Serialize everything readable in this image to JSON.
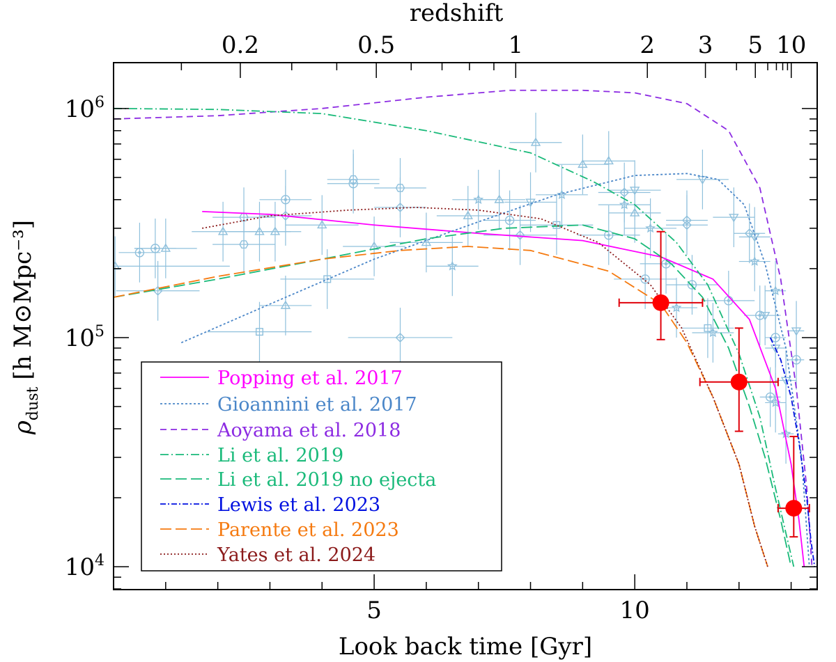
{
  "chart_data": {
    "type": "line",
    "title": "",
    "xlabel": "Look back time [Gyr]",
    "top_xlabel": "redshift",
    "ylabel_main": "ρ",
    "ylabel_sub": "dust",
    "ylabel_unit": "[h M⊙Mpc⁻³]",
    "xlim": [
      0,
      13.5
    ],
    "ylim_log10": [
      3.9,
      6.2
    ],
    "x_ticks": [
      {
        "v": 5,
        "label": "5"
      },
      {
        "v": 10,
        "label": "10"
      }
    ],
    "y_ticks": [
      {
        "v": 10000,
        "base": "10",
        "exp": "4"
      },
      {
        "v": 100000,
        "base": "10",
        "exp": "5"
      },
      {
        "v": 1000000,
        "base": "10",
        "exp": "6"
      }
    ],
    "top_ticks": [
      {
        "z": 0.2,
        "label": "0.2"
      },
      {
        "z": 0.5,
        "label": "0.5"
      },
      {
        "z": 1,
        "label": "1"
      },
      {
        "z": 2,
        "label": "2"
      },
      {
        "z": 3,
        "label": "3"
      },
      {
        "z": 5,
        "label": "5"
      },
      {
        "z": 10,
        "label": "10"
      }
    ],
    "series": [
      {
        "name": "Popping et al. 2017",
        "color": "#ff00ff",
        "dash": "",
        "x": [
          1.7,
          3,
          5,
          7,
          9,
          10.5,
          11.5,
          12.2,
          12.7,
          13,
          13.15,
          13.25
        ],
        "y": [
          355000,
          345000,
          310000,
          285000,
          265000,
          225000,
          180000,
          120000,
          60000,
          28000,
          16000,
          10000
        ]
      },
      {
        "name": "Gioannini et al. 2017",
        "color": "#4a86c8",
        "dash": "3,3",
        "x": [
          1.3,
          3,
          5,
          7,
          8.5,
          10,
          11,
          11.6,
          12.1,
          12.5,
          12.9,
          13.2,
          13.35
        ],
        "y": [
          95000,
          140000,
          220000,
          320000,
          420000,
          510000,
          520000,
          490000,
          380000,
          210000,
          90000,
          30000,
          10000
        ]
      },
      {
        "name": "Aoyama et al. 2018",
        "color": "#8c2be2",
        "dash": "9,6",
        "x": [
          0,
          2,
          4,
          6,
          7.6,
          9,
          10,
          11,
          11.8,
          12.4,
          12.8,
          13.1,
          13.3,
          13.4
        ],
        "y": [
          900000,
          930000,
          1000000,
          1120000,
          1200000,
          1200000,
          1170000,
          1050000,
          800000,
          450000,
          180000,
          60000,
          22000,
          10000
        ]
      },
      {
        "name": "Li et al. 2019",
        "color": "#1aba7a",
        "dash": "12,4,2,4",
        "x": [
          0,
          2,
          4,
          6,
          8,
          9.2,
          10,
          10.8,
          11.4,
          12,
          12.4,
          12.7,
          12.9,
          13.05
        ],
        "y": [
          1000000,
          990000,
          950000,
          800000,
          640000,
          480000,
          380000,
          260000,
          170000,
          85000,
          45000,
          22000,
          14000,
          10000
        ]
      },
      {
        "name": "Li et al. 2019 no ejecta",
        "color": "#1aba7a",
        "dash": "16,6",
        "x": [
          0,
          2,
          4,
          6,
          7.5,
          9,
          10,
          10.7,
          11.3,
          11.8,
          12.2,
          12.5,
          12.8,
          13
        ],
        "y": [
          150000,
          180000,
          220000,
          270000,
          300000,
          310000,
          270000,
          210000,
          150000,
          90000,
          50000,
          30000,
          16000,
          10000
        ]
      },
      {
        "name": "Lewis et al. 2023",
        "color": "#0010e0",
        "dash": "8,3,2,3",
        "x": [
          12.6,
          12.8,
          13,
          13.15,
          13.3,
          13.38,
          13.45
        ],
        "y": [
          100000,
          80000,
          55000,
          35000,
          20000,
          13000,
          10000
        ]
      },
      {
        "name": "Parente et al. 2023",
        "color": "#f57a10",
        "dash": "16,6",
        "x": [
          0,
          2,
          4,
          5.5,
          6.8,
          8,
          9.5,
          10.5,
          11,
          11.5,
          12,
          12.3,
          12.55
        ],
        "y": [
          150000,
          185000,
          220000,
          240000,
          250000,
          240000,
          195000,
          140000,
          95000,
          55000,
          28000,
          15000,
          10000
        ]
      },
      {
        "name": "Yates et al. 2024",
        "color": "#8b1a1a",
        "dash": "2,3",
        "x": [
          1.7,
          3,
          4.5,
          5.8,
          7,
          8.2,
          9.3,
          10.3,
          10.9,
          11.5,
          12,
          12.3,
          12.55
        ],
        "y": [
          300000,
          340000,
          360000,
          370000,
          360000,
          330000,
          260000,
          170000,
          110000,
          55000,
          28000,
          15000,
          10000
        ]
      }
    ],
    "highlight_points": [
      {
        "x": 10.5,
        "y": 142000,
        "xerr": 0.8,
        "yerr_lo": 98000,
        "yerr_hi": 290000
      },
      {
        "x": 12.0,
        "y": 64000,
        "xerr": 0.75,
        "yerr_lo": 39000,
        "yerr_hi": 110000
      },
      {
        "x": 13.05,
        "y": 18000,
        "xerr": 0.3,
        "yerr_lo": 13500,
        "yerr_hi": 37000
      }
    ],
    "observations": [
      {
        "x": 0.03,
        "y": 205000,
        "xerr": 2.2,
        "m": "tri"
      },
      {
        "x": 0.5,
        "y": 235000,
        "xerr": 0.4,
        "m": "circ"
      },
      {
        "x": 0.8,
        "y": 245000,
        "xerr": 0.4,
        "m": "circ"
      },
      {
        "x": 1.0,
        "y": 245000,
        "xerr": 0.6,
        "m": "tri"
      },
      {
        "x": 0.85,
        "y": 160000,
        "xerr": 0.8,
        "m": "dia"
      },
      {
        "x": 2.1,
        "y": 290000,
        "xerr": 0.6,
        "m": "tri"
      },
      {
        "x": 2.5,
        "y": 335000,
        "xerr": 0.6,
        "m": "hex"
      },
      {
        "x": 2.5,
        "y": 255000,
        "xerr": 0.6,
        "m": "hex"
      },
      {
        "x": 2.8,
        "y": 290000,
        "xerr": 0.6,
        "m": "tri"
      },
      {
        "x": 3.1,
        "y": 290000,
        "xerr": 0.5,
        "m": "tri"
      },
      {
        "x": 3.3,
        "y": 400000,
        "xerr": 0.5,
        "m": "circ"
      },
      {
        "x": 3.3,
        "y": 340000,
        "xerr": 0.5,
        "m": "dia"
      },
      {
        "x": 3.3,
        "y": 138000,
        "xerr": 0.5,
        "m": "tri"
      },
      {
        "x": 2.8,
        "y": 106000,
        "xerr": 1.0,
        "m": "sq"
      },
      {
        "x": 4.0,
        "y": 310000,
        "xerr": 0.7,
        "m": "tri"
      },
      {
        "x": 4.1,
        "y": 180000,
        "xerr": 0.9,
        "m": "sq"
      },
      {
        "x": 4.6,
        "y": 490000,
        "xerr": 0.5,
        "m": "hex"
      },
      {
        "x": 4.6,
        "y": 470000,
        "xerr": 0.5,
        "m": "circ"
      },
      {
        "x": 5.0,
        "y": 250000,
        "xerr": 0.6,
        "m": "tri"
      },
      {
        "x": 5.5,
        "y": 450000,
        "xerr": 0.5,
        "m": "hex"
      },
      {
        "x": 5.5,
        "y": 370000,
        "xerr": 0.5,
        "m": "dia"
      },
      {
        "x": 5.5,
        "y": 100000,
        "xerr": 1.0,
        "m": "dia"
      },
      {
        "x": 6.0,
        "y": 260000,
        "xerr": 0.7,
        "m": "tri"
      },
      {
        "x": 6.5,
        "y": 205000,
        "xerr": 0.5,
        "m": "star"
      },
      {
        "x": 6.8,
        "y": 340000,
        "xerr": 0.6,
        "m": "tri"
      },
      {
        "x": 7.0,
        "y": 400000,
        "xerr": 0.5,
        "m": "star"
      },
      {
        "x": 7.4,
        "y": 400000,
        "xerr": 0.5,
        "m": "tri"
      },
      {
        "x": 7.6,
        "y": 325000,
        "xerr": 0.5,
        "m": "circ"
      },
      {
        "x": 7.8,
        "y": 280000,
        "xerr": 0.7,
        "m": "dia"
      },
      {
        "x": 8.0,
        "y": 390000,
        "xerr": 0.5,
        "m": "dtri"
      },
      {
        "x": 8.1,
        "y": 710000,
        "xerr": 0.5,
        "m": "tri"
      },
      {
        "x": 8.5,
        "y": 310000,
        "xerr": 0.7,
        "m": "sq"
      },
      {
        "x": 8.6,
        "y": 420000,
        "xerr": 0.5,
        "m": "star"
      },
      {
        "x": 9.0,
        "y": 570000,
        "xerr": 0.5,
        "m": "tri"
      },
      {
        "x": 9.5,
        "y": 590000,
        "xerr": 0.5,
        "m": "tri"
      },
      {
        "x": 9.5,
        "y": 280000,
        "xerr": 0.6,
        "m": "circ"
      },
      {
        "x": 9.8,
        "y": 380000,
        "xerr": 0.5,
        "m": "star"
      },
      {
        "x": 9.8,
        "y": 430000,
        "xerr": 0.5,
        "m": "dia"
      },
      {
        "x": 10.0,
        "y": 350000,
        "xerr": 0.5,
        "m": "tri"
      },
      {
        "x": 10.0,
        "y": 440000,
        "xerr": 0.5,
        "m": "dtri"
      },
      {
        "x": 10.2,
        "y": 180000,
        "xerr": 0.6,
        "m": "circ"
      },
      {
        "x": 10.3,
        "y": 300000,
        "xerr": 0.5,
        "m": "star"
      },
      {
        "x": 10.6,
        "y": 210000,
        "xerr": 0.5,
        "m": "circ"
      },
      {
        "x": 10.8,
        "y": 135000,
        "xerr": 0.4,
        "m": "star"
      },
      {
        "x": 11.0,
        "y": 325000,
        "xerr": 0.4,
        "m": "dia"
      },
      {
        "x": 11.0,
        "y": 310000,
        "xerr": 0.4,
        "m": "dia"
      },
      {
        "x": 11.1,
        "y": 170000,
        "xerr": 0.5,
        "m": "circ"
      },
      {
        "x": 11.3,
        "y": 490000,
        "xerr": 0.5,
        "m": "dtri"
      },
      {
        "x": 11.4,
        "y": 110000,
        "xerr": 0.5,
        "m": "sq"
      },
      {
        "x": 11.5,
        "y": 105000,
        "xerr": 0.4,
        "m": "star"
      },
      {
        "x": 11.8,
        "y": 145000,
        "xerr": 0.5,
        "m": "circ"
      },
      {
        "x": 11.9,
        "y": 335000,
        "xerr": 0.4,
        "m": "dtri"
      },
      {
        "x": 12.2,
        "y": 285000,
        "xerr": 0.3,
        "m": "dia"
      },
      {
        "x": 12.3,
        "y": 275000,
        "xerr": 0.3,
        "m": "dtri"
      },
      {
        "x": 12.3,
        "y": 215000,
        "xerr": 0.3,
        "m": "star"
      },
      {
        "x": 12.4,
        "y": 125000,
        "xerr": 0.3,
        "m": "circ"
      },
      {
        "x": 12.5,
        "y": 125000,
        "xerr": 0.3,
        "m": "dtri"
      },
      {
        "x": 12.7,
        "y": 160000,
        "xerr": 0.2,
        "m": "star"
      },
      {
        "x": 12.7,
        "y": 100000,
        "xerr": 0.2,
        "m": "circ"
      },
      {
        "x": 12.7,
        "y": 90000,
        "xerr": 0.2,
        "m": "dtri"
      },
      {
        "x": 12.6,
        "y": 55000,
        "xerr": 0.2,
        "m": "circ"
      },
      {
        "x": 12.7,
        "y": 52000,
        "xerr": 0.2,
        "m": "star"
      },
      {
        "x": 12.9,
        "y": 65000,
        "xerr": 0.2,
        "m": "dtri"
      },
      {
        "x": 13.1,
        "y": 107000,
        "xerr": 0.15,
        "m": "dtri"
      },
      {
        "x": 13.1,
        "y": 80000,
        "xerr": 0.15,
        "m": "circ"
      },
      {
        "x": 12.9,
        "y": 38000,
        "xerr": 0.15,
        "m": "star"
      }
    ]
  }
}
